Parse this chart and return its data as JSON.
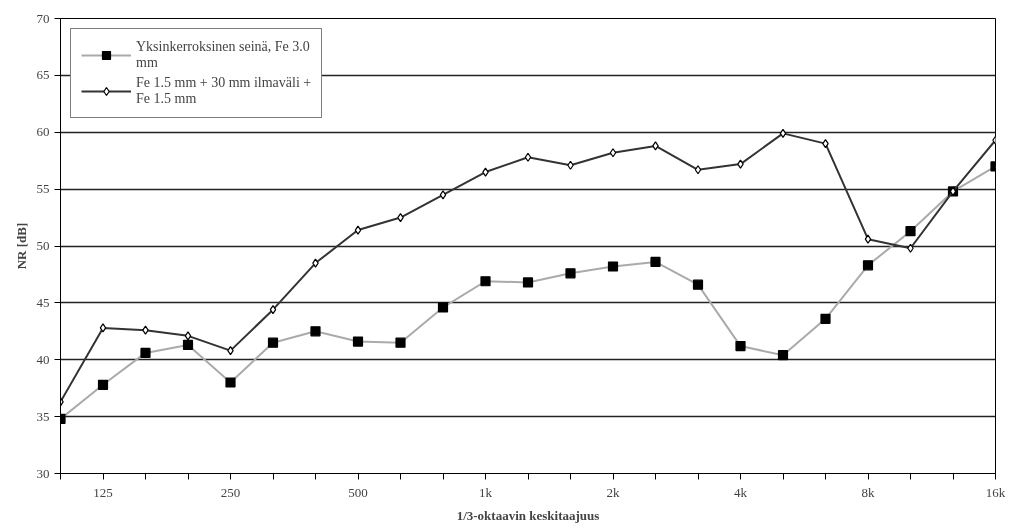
{
  "chart_data": {
    "type": "line",
    "xlabel": "1/3-oktaavin keskitaajuus",
    "ylabel": "NR [dB]",
    "categories": [
      null,
      "125",
      null,
      null,
      "250",
      null,
      null,
      "500",
      null,
      null,
      "1k",
      null,
      null,
      "2k",
      null,
      null,
      "4k",
      null,
      null,
      "8k",
      null,
      null,
      "16k"
    ],
    "series": [
      {
        "name": "Yksinkerroksinen seinä, Fe 3.0 mm",
        "color": "#aaaaaa",
        "marker": "square",
        "values": [
          34.8,
          37.8,
          40.6,
          41.3,
          38.0,
          41.5,
          42.5,
          41.6,
          41.5,
          44.6,
          46.9,
          46.8,
          47.6,
          48.2,
          48.6,
          46.6,
          41.2,
          40.4,
          43.6,
          48.3,
          51.3,
          54.8,
          57.0
        ]
      },
      {
        "name": "Fe 1.5 mm + 30 mm ilmaväli + Fe 1.5 mm",
        "color": "#333333",
        "marker": "diamond",
        "values": [
          36.3,
          42.8,
          42.6,
          42.1,
          40.8,
          44.4,
          48.5,
          51.4,
          52.5,
          54.5,
          56.5,
          57.8,
          57.1,
          58.2,
          58.8,
          56.7,
          57.2,
          59.9,
          59.0,
          50.6,
          49.8,
          54.8,
          59.3
        ]
      }
    ],
    "ylim": [
      30,
      70
    ],
    "yticks": [
      30,
      35,
      40,
      45,
      50,
      55,
      60,
      65,
      70
    ],
    "grid": "y",
    "legend": "top left",
    "line_style": "solid"
  }
}
